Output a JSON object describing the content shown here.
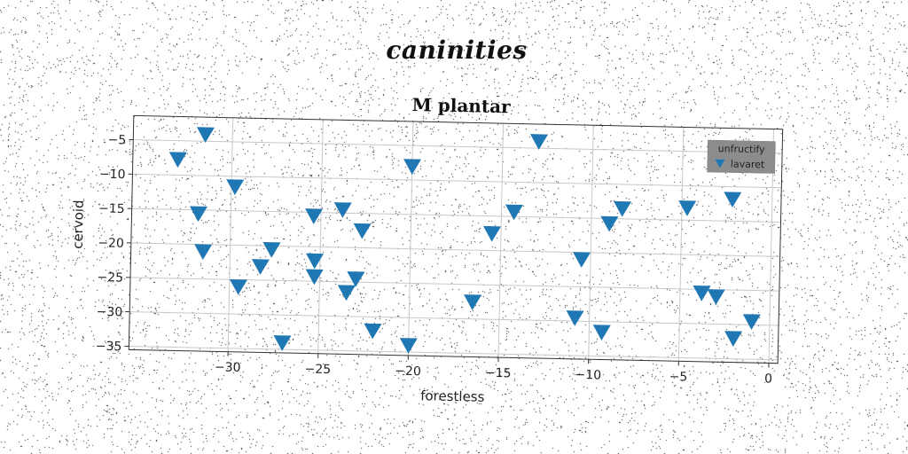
{
  "figure": {
    "title": "caninities"
  },
  "chart_data": {
    "type": "scatter",
    "title": "M plantar",
    "xlabel": "forestless",
    "ylabel": "cervoid",
    "xlim": [
      -35.5,
      0.5
    ],
    "ylim": [
      -35.5,
      -1.5
    ],
    "xticks": [
      -30,
      -25,
      -20,
      -15,
      -10,
      -5,
      0
    ],
    "yticks": [
      -5,
      -10,
      -15,
      -20,
      -25,
      -30,
      -35
    ],
    "xtick_labels": [
      "−30",
      "−25",
      "−20",
      "−15",
      "−10",
      "−5",
      "0"
    ],
    "ytick_labels": [
      "−5",
      "−10",
      "−15",
      "−20",
      "−25",
      "−30",
      "−35"
    ],
    "grid": true,
    "legend": {
      "title": "unfructify",
      "placement": "top-right"
    },
    "series": [
      {
        "name": "lavaret",
        "marker": "triangle-down",
        "color": "#1f77b4",
        "points": [
          [
            -31.5,
            -4
          ],
          [
            -33,
            -7.7
          ],
          [
            -29.8,
            -11.5
          ],
          [
            -31.8,
            -15.5
          ],
          [
            -31.5,
            -21
          ],
          [
            -29.5,
            -26
          ],
          [
            -28.3,
            -23
          ],
          [
            -27.7,
            -20.5
          ],
          [
            -27,
            -34
          ],
          [
            -25.4,
            -15.5
          ],
          [
            -25.3,
            -22
          ],
          [
            -25.3,
            -24.3
          ],
          [
            -23.8,
            -14.5
          ],
          [
            -23.5,
            -26.5
          ],
          [
            -23,
            -24.5
          ],
          [
            -22.7,
            -17.5
          ],
          [
            -22,
            -32
          ],
          [
            -20,
            -8
          ],
          [
            -20,
            -34
          ],
          [
            -16.5,
            -27.5
          ],
          [
            -15.5,
            -17.5
          ],
          [
            -14.3,
            -14.3
          ],
          [
            -13,
            -4
          ],
          [
            -10.8,
            -29.5
          ],
          [
            -10.5,
            -21
          ],
          [
            -9.3,
            -31.5
          ],
          [
            -9,
            -15.7
          ],
          [
            -8.3,
            -13.5
          ],
          [
            -4.7,
            -13.2
          ],
          [
            -3.8,
            -25.5
          ],
          [
            -3,
            -26
          ],
          [
            -2.2,
            -11.8
          ],
          [
            -2,
            -32
          ],
          [
            -1,
            -29.5
          ]
        ]
      }
    ]
  }
}
